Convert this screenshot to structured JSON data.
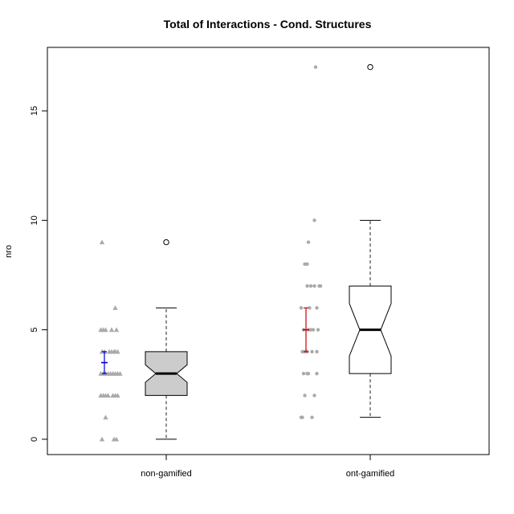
{
  "chart_data": {
    "type": "boxplot",
    "title": "Total of Interactions - Cond. Structures",
    "xlabel": "",
    "ylabel": "nro",
    "ylim": [
      -0.7,
      17.9
    ],
    "yticks": [
      0,
      5,
      10,
      15
    ],
    "ytick_labels": [
      "0",
      "5",
      "10",
      "15"
    ],
    "grid": false,
    "groups": [
      {
        "label": "non-gamified",
        "box_fill": "#cccccc",
        "point_color": "#aaaaaa",
        "point_shape": "triangle",
        "ci_color": "#0000cc",
        "whisker_low": 0,
        "q1": 2,
        "median": 3,
        "q3": 4,
        "whisker_high": 6,
        "notch_low": 2.6,
        "notch_high": 3.4,
        "outliers": [
          9
        ],
        "mean": 3.5,
        "ci_low": 3.0,
        "ci_high": 4.0,
        "points": [
          [
            -0.2,
            0
          ],
          [
            0.3,
            0
          ],
          [
            0.4,
            0
          ],
          [
            -0.05,
            1
          ],
          [
            -0.25,
            2
          ],
          [
            -0.15,
            2
          ],
          [
            -0.05,
            2
          ],
          [
            0.05,
            2
          ],
          [
            0.25,
            2
          ],
          [
            0.35,
            2
          ],
          [
            0.45,
            2
          ],
          [
            -0.25,
            3
          ],
          [
            -0.15,
            3
          ],
          [
            -0.05,
            3
          ],
          [
            0.05,
            3
          ],
          [
            0.15,
            3
          ],
          [
            0.25,
            3
          ],
          [
            0.35,
            3
          ],
          [
            0.45,
            3
          ],
          [
            0.55,
            3
          ],
          [
            -0.2,
            4
          ],
          [
            -0.1,
            4
          ],
          [
            0.1,
            4
          ],
          [
            0.2,
            4
          ],
          [
            0.3,
            4
          ],
          [
            0.35,
            4
          ],
          [
            0.45,
            4
          ],
          [
            -0.25,
            5
          ],
          [
            -0.15,
            5
          ],
          [
            -0.05,
            5
          ],
          [
            0.2,
            5
          ],
          [
            0.4,
            5
          ],
          [
            0.35,
            6
          ],
          [
            -0.2,
            9
          ]
        ]
      },
      {
        "label": "ont-gamified",
        "box_fill": "#ffffff",
        "point_color": "#aaaaaa",
        "point_shape": "circle",
        "ci_color": "#cc0000",
        "whisker_low": 1,
        "q1": 3,
        "median": 5,
        "q3": 7,
        "whisker_high": 10,
        "notch_low": 3.8,
        "notch_high": 6.2,
        "outliers": [
          17
        ],
        "mean": 5.0,
        "ci_low": 4.0,
        "ci_high": 6.0,
        "points": [
          [
            -0.3,
            1
          ],
          [
            -0.25,
            1
          ],
          [
            0.15,
            1
          ],
          [
            -0.15,
            2
          ],
          [
            0.25,
            2
          ],
          [
            -0.2,
            3
          ],
          [
            -0.05,
            3
          ],
          [
            0.0,
            3
          ],
          [
            0.35,
            3
          ],
          [
            -0.25,
            4
          ],
          [
            -0.15,
            4
          ],
          [
            -0.05,
            4
          ],
          [
            0.15,
            4
          ],
          [
            0.35,
            4
          ],
          [
            -0.2,
            5
          ],
          [
            0.0,
            5
          ],
          [
            0.1,
            5
          ],
          [
            0.2,
            5
          ],
          [
            0.4,
            5
          ],
          [
            -0.3,
            6
          ],
          [
            0.05,
            6
          ],
          [
            0.35,
            6
          ],
          [
            -0.05,
            7
          ],
          [
            0.1,
            7
          ],
          [
            0.25,
            7
          ],
          [
            0.45,
            7
          ],
          [
            0.5,
            7
          ],
          [
            -0.15,
            8
          ],
          [
            -0.05,
            8
          ],
          [
            0.0,
            9
          ],
          [
            0.25,
            10
          ],
          [
            0.3,
            17
          ]
        ]
      }
    ]
  }
}
